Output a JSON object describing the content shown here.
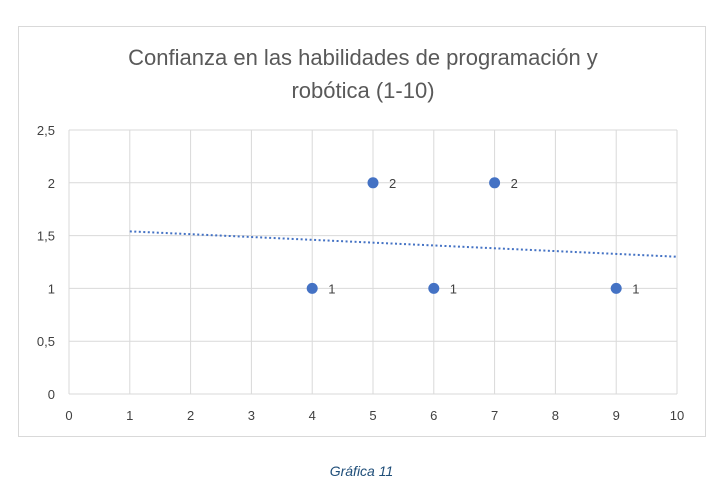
{
  "caption": "Gráfica 11",
  "colors": {
    "marker": "#4472c4",
    "trendline": "#4472c4",
    "grid": "#d9d9d9",
    "text": "#595959",
    "caption": "#1f4e79"
  },
  "chart_data": {
    "type": "scatter",
    "title_lines": [
      "Confianza en las habilidades de programación y",
      "robótica (1-10)"
    ],
    "xlabel": "",
    "ylabel": "",
    "xlim": [
      0,
      10
    ],
    "ylim": [
      0,
      2.5
    ],
    "x_ticks": [
      "0",
      "1",
      "2",
      "3",
      "4",
      "5",
      "6",
      "7",
      "8",
      "9",
      "10"
    ],
    "y_ticks": [
      "0",
      "0,5",
      "1",
      "1,5",
      "2",
      "2,5"
    ],
    "grid": true,
    "legend": "none",
    "points": [
      {
        "x": 4,
        "y": 1,
        "label": "1"
      },
      {
        "x": 5,
        "y": 2,
        "label": "2"
      },
      {
        "x": 6,
        "y": 1,
        "label": "1"
      },
      {
        "x": 7,
        "y": 2,
        "label": "2"
      },
      {
        "x": 9,
        "y": 1,
        "label": "1"
      }
    ],
    "trendline": {
      "type": "linear",
      "style": "dotted",
      "x": [
        1,
        10
      ],
      "y": [
        1.54,
        1.3
      ]
    }
  }
}
